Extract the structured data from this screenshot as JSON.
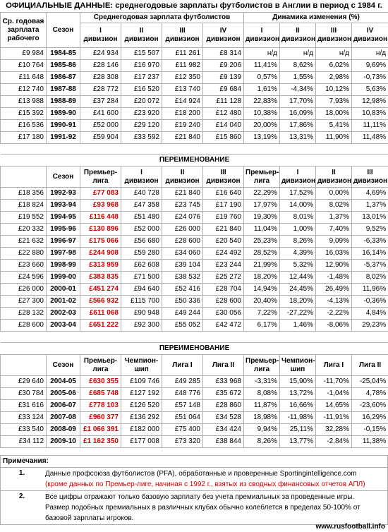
{
  "title": "ОФИЦИАЛЬНЫЕ ДАННЫЕ: среднегодовые зарплаты футболистов в Англии в период с 1984 г.",
  "table1": {
    "h_worker": "Ср. годовая зарплата рабочего",
    "h_season": "Сезон",
    "h_salary_group": "Среднегодовая зарплата футболистов",
    "h_dyn_group": "Динамика изменения (%)",
    "cols": [
      "I дивизион",
      "II дивизион",
      "III дивизион",
      "IV дивизион"
    ],
    "rows": [
      {
        "worker": "£9 984",
        "season": "1984-85",
        "s": [
          "£24 934",
          "£15 507",
          "£11 261",
          "£8 314"
        ],
        "d": [
          "н/д",
          "н/д",
          "н/д",
          "н/д"
        ]
      },
      {
        "worker": "£10 764",
        "season": "1985-86",
        "s": [
          "£28 146",
          "£16 970",
          "£11 982",
          "£9 206"
        ],
        "d": [
          "11,41%",
          "8,62%",
          "6,02%",
          "9,69%"
        ]
      },
      {
        "worker": "£11 648",
        "season": "1986-87",
        "s": [
          "£28 308",
          "£17 237",
          "£12 350",
          "£9 139"
        ],
        "d": [
          "0,57%",
          "1,55%",
          "2,98%",
          "-0,73%"
        ]
      },
      {
        "worker": "£12 740",
        "season": "1987-88",
        "s": [
          "£28 772",
          "£16 520",
          "£13 740",
          "£9 684"
        ],
        "d": [
          "1,61%",
          "-4,34%",
          "10,12%",
          "5,63%"
        ]
      },
      {
        "worker": "£13 988",
        "season": "1988-89",
        "s": [
          "£37 284",
          "£20 072",
          "£14 924",
          "£11 128"
        ],
        "d": [
          "22,83%",
          "17,70%",
          "7,93%",
          "12,98%"
        ]
      },
      {
        "worker": "£15 392",
        "season": "1989-90",
        "s": [
          "£41 600",
          "£23 920",
          "£18 200",
          "£12 480"
        ],
        "d": [
          "10,38%",
          "16,09%",
          "18,00%",
          "10,83%"
        ]
      },
      {
        "worker": "£16 536",
        "season": "1990-91",
        "s": [
          "£52 000",
          "£29 120",
          "£19 240",
          "£14 040"
        ],
        "d": [
          "20,00%",
          "17,86%",
          "5,41%",
          "11,11%"
        ]
      },
      {
        "worker": "£17 180",
        "season": "1991-92",
        "s": [
          "£59 904",
          "£33 592",
          "£21 840",
          "£15 860"
        ],
        "d": [
          "13,19%",
          "13,31%",
          "11,90%",
          "11,48%"
        ]
      }
    ]
  },
  "table2": {
    "banner": "ПЕРЕИМЕНОВАНИЕ",
    "h_season": "Сезон",
    "cols": [
      "Премьер-лига",
      "I дивизион",
      "II дивизион",
      "III дивизион"
    ],
    "rows": [
      {
        "worker": "£18 356",
        "season": "1992-93",
        "s": [
          "£77 083",
          "£40 728",
          "£21 840",
          "£16 640"
        ],
        "d": [
          "22,29%",
          "17,52%",
          "0,00%",
          "4,69%"
        ]
      },
      {
        "worker": "£18 824",
        "season": "1993-94",
        "s": [
          "£93 968",
          "£47 358",
          "£23 745",
          "£17 190"
        ],
        "d": [
          "17,97%",
          "14,00%",
          "8,02%",
          "1,37%"
        ]
      },
      {
        "worker": "£19 552",
        "season": "1994-95",
        "s": [
          "£116 448",
          "£51 480",
          "£24 076",
          "£19 760"
        ],
        "d": [
          "19,30%",
          "8,01%",
          "1,37%",
          "13,01%"
        ]
      },
      {
        "worker": "£20 332",
        "season": "1995-96",
        "s": [
          "£130 896",
          "£52 000",
          "£26 000",
          "£21 840"
        ],
        "d": [
          "11,04%",
          "1,00%",
          "7,40%",
          "9,52%"
        ]
      },
      {
        "worker": "£21 632",
        "season": "1996-97",
        "s": [
          "£175 066",
          "£56 680",
          "£28 600",
          "£20 540"
        ],
        "d": [
          "25,23%",
          "8,26%",
          "9,09%",
          "-6,33%"
        ]
      },
      {
        "worker": "£22 880",
        "season": "1997-98",
        "s": [
          "£244 908",
          "£59 280",
          "£34 060",
          "£24 492"
        ],
        "d": [
          "28,52%",
          "4,39%",
          "16,03%",
          "16,14%"
        ]
      },
      {
        "worker": "£23 660",
        "season": "1998-99",
        "s": [
          "£313 959",
          "£62 608",
          "£39 104",
          "£23 244"
        ],
        "d": [
          "21,99%",
          "5,32%",
          "12,90%",
          "-5,37%"
        ]
      },
      {
        "worker": "£24 596",
        "season": "1999-00",
        "s": [
          "£383 835",
          "£71 500",
          "£38 532",
          "£25 272"
        ],
        "d": [
          "18,20%",
          "12,44%",
          "-1,48%",
          "8,02%"
        ]
      },
      {
        "worker": "£26 000",
        "season": "2000-01",
        "s": [
          "£451 274",
          "£94 640",
          "£52 416",
          "£28 704"
        ],
        "d": [
          "14,94%",
          "24,45%",
          "26,49%",
          "11,96%"
        ]
      },
      {
        "worker": "£27 300",
        "season": "2001-02",
        "s": [
          "£566 932",
          "£115 700",
          "£50 336",
          "£28 600"
        ],
        "d": [
          "20,40%",
          "18,20%",
          "-4,13%",
          "-0,36%"
        ]
      },
      {
        "worker": "£28 132",
        "season": "2002-03",
        "s": [
          "£611 068",
          "£90 948",
          "£49 244",
          "£30 056"
        ],
        "d": [
          "7,22%",
          "-27,22%",
          "-2,22%",
          "4,84%"
        ]
      },
      {
        "worker": "£28 600",
        "season": "2003-04",
        "s": [
          "£651 222",
          "£92 300",
          "£55 052",
          "£42 472"
        ],
        "d": [
          "6,17%",
          "1,46%",
          "-8,06%",
          "29,23%"
        ]
      }
    ]
  },
  "table3": {
    "banner": "ПЕРЕИМЕНОВАНИЕ",
    "h_season": "Сезон",
    "cols": [
      "Премьер-лига",
      "Чемпион-шип",
      "Лига I",
      "Лига II"
    ],
    "rows": [
      {
        "worker": "£29 640",
        "season": "2004-05",
        "s": [
          "£630 355",
          "£109 746",
          "£49 285",
          "£33 968"
        ],
        "d": [
          "-3,31%",
          "15,90%",
          "-11,70%",
          "-25,04%"
        ]
      },
      {
        "worker": "£30 784",
        "season": "2005-06",
        "s": [
          "£685 748",
          "£127 192",
          "£48 776",
          "£35 672"
        ],
        "d": [
          "8,08%",
          "13,72%",
          "-1,04%",
          "4,78%"
        ]
      },
      {
        "worker": "£31 616",
        "season": "2006-07",
        "s": [
          "£778 103",
          "£126 520",
          "£57 148",
          "£28 860"
        ],
        "d": [
          "11,87%",
          "16,66%",
          "14,65%",
          "-23,60%"
        ]
      },
      {
        "worker": "£33 124",
        "season": "2007-08",
        "s": [
          "£960 377",
          "£136 292",
          "£51 064",
          "£34 528"
        ],
        "d": [
          "18,98%",
          "-11,98%",
          "-11,91%",
          "16,29%"
        ]
      },
      {
        "worker": "£33 540",
        "season": "2008-09",
        "s": [
          "£1 066 391",
          "£182 000",
          "£75 400",
          "£34 424"
        ],
        "d": [
          "9,94%",
          "25,11%",
          "32,28%",
          "-0,15%"
        ]
      },
      {
        "worker": "£34 112",
        "season": "2009-10",
        "s": [
          "£1 162 350",
          "£177 008",
          "£73 320",
          "£38 844"
        ],
        "d": [
          "8,26%",
          "13,77%",
          "-2,84%",
          "11,38%"
        ]
      }
    ]
  },
  "notes": {
    "heading": "Примечания:",
    "items": [
      {
        "num": "1.",
        "text": "Данные профсоюза футболистов (PFA), обработанные и проверенные Sportingintelligence.com",
        "red": "(кроме данных по Премьер-лиге, начиная с 1992 г., взятых из сводных финансовых отчетов АПЛ)"
      },
      {
        "num": "2.",
        "text": "Все цифры отражают только базовую зарплату без учета премиальных за проведенные игры.",
        "text2": "Размер подобных премиальных в различных клубах обычно колеблется в пределах 50-100% от базовой зарплаты игроков."
      }
    ]
  },
  "watermark": "www.rusfootball.info"
}
